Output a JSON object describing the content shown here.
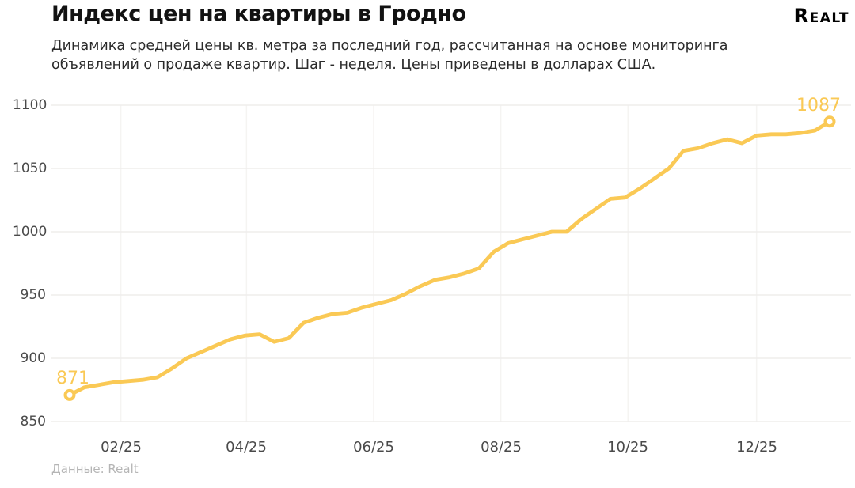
{
  "header": {
    "title": "Индекс цен на квартиры в Гродно",
    "subtitle_line1": "Динамика средней цены кв. метра за последний год, рассчитанная на основе мониторинга",
    "subtitle_line2": "объявлений о продаже квартир. Шаг - неделя. Цены приведены в долларах США.",
    "logo": "Realt"
  },
  "footer": {
    "source": "Данные: Realt"
  },
  "chart_data": {
    "type": "line",
    "title": "Индекс цен на квартиры в Гродно",
    "step": "week",
    "currency": "USD",
    "series": [
      {
        "name": "Средняя цена кв. метра, USD",
        "values": [
          871,
          877,
          879,
          881,
          882,
          883,
          885,
          892,
          900,
          905,
          910,
          915,
          918,
          919,
          913,
          916,
          928,
          932,
          935,
          936,
          940,
          943,
          946,
          951,
          957,
          962,
          964,
          967,
          971,
          984,
          991,
          994,
          997,
          1000,
          1000,
          1010,
          1018,
          1026,
          1027,
          1034,
          1042,
          1050,
          1064,
          1066,
          1070,
          1073,
          1070,
          1076,
          1077,
          1077,
          1078,
          1080,
          1087
        ]
      }
    ],
    "x_tick_labels": [
      "02/25",
      "04/25",
      "06/25",
      "08/25",
      "10/25",
      "12/25"
    ],
    "x_tick_week_positions": [
      3.5,
      12.1,
      20.8,
      29.5,
      38.2,
      47.0
    ],
    "y_ticks": [
      1100,
      1050,
      1000,
      950,
      900,
      850
    ],
    "ylim": [
      850,
      1100
    ],
    "grid": true,
    "legend": "none",
    "first_point_label": "871",
    "last_point_label": "1087",
    "line_color": "#FAC955",
    "grid_color_h": "#efedec",
    "grid_color_v": "#f5f4f2",
    "marker_fill": "#ffffff"
  }
}
